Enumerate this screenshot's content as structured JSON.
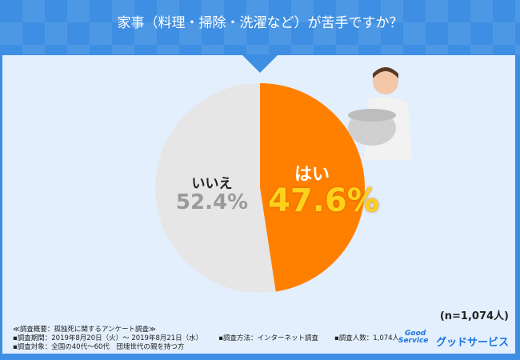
{
  "header": {
    "title": "家事（料理・掃除・洗濯など）が苦手ですか？"
  },
  "chart_data": {
    "type": "pie",
    "title": "家事（料理・掃除・洗濯など）が苦手ですか？",
    "categories": [
      "はい",
      "いいえ"
    ],
    "values": [
      47.6,
      52.4
    ],
    "value_labels": [
      "47.6%",
      "52.4%"
    ],
    "colors": [
      "#ff8000",
      "#e6e6e6"
    ],
    "sample_size": "(n=1,074人)"
  },
  "notes": {
    "summary": "≪調査概要：孤独死に関するアンケート調査≫",
    "period": "▪調査期間：2019年8月20日（火）～ 2019年8月21日（水）",
    "method": "▪調査方法：インターネット調査",
    "count": "▪調査人数：1,074人",
    "target": "▪調査対象：全国の40代～60代　団塊世代の親を持つ方"
  },
  "brand": {
    "logo_line1": "Good",
    "logo_line2": "Service",
    "name": "グッドサービス"
  }
}
